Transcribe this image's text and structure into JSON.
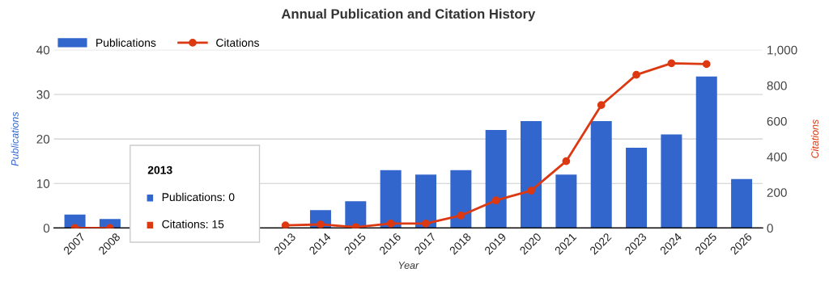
{
  "chart_data": {
    "type": "bar",
    "title": "Annual Publication and Citation History",
    "xlabel": "Year",
    "ylabel": "Publications",
    "y2label": "Citations",
    "categories": [
      "2007",
      "2008",
      null,
      null,
      null,
      null,
      "2013",
      "2014",
      "2015",
      "2016",
      "2017",
      "2018",
      "2019",
      "2020",
      "2021",
      "2022",
      "2023",
      "2024",
      "2025",
      "2026"
    ],
    "series": [
      {
        "name": "Publications",
        "color": "#3366cc",
        "values": [
          3,
          2,
          null,
          null,
          null,
          null,
          0,
          4,
          6,
          13,
          12,
          13,
          22,
          24,
          12,
          24,
          18,
          21,
          34,
          11
        ]
      },
      {
        "name": "Citations",
        "type": "line",
        "axis": "y2",
        "color": "#dc3912",
        "marker": "circle",
        "values": [
          0,
          0,
          null,
          null,
          null,
          null,
          15,
          20,
          5,
          25,
          25,
          70,
          155,
          210,
          375,
          690,
          860,
          925,
          920,
          null
        ]
      }
    ],
    "ylim": [
      0,
      40
    ],
    "yticks": [
      0,
      10,
      20,
      30,
      40
    ],
    "y2lim": [
      0,
      1000
    ],
    "y2ticks": [
      0,
      200,
      400,
      600,
      800,
      {
        "value": 1000,
        "label": "1,000"
      }
    ],
    "grid": "y",
    "legend": "top left",
    "annotations": [
      "2013",
      "Publications: 0",
      "Citations: 15"
    ]
  }
}
